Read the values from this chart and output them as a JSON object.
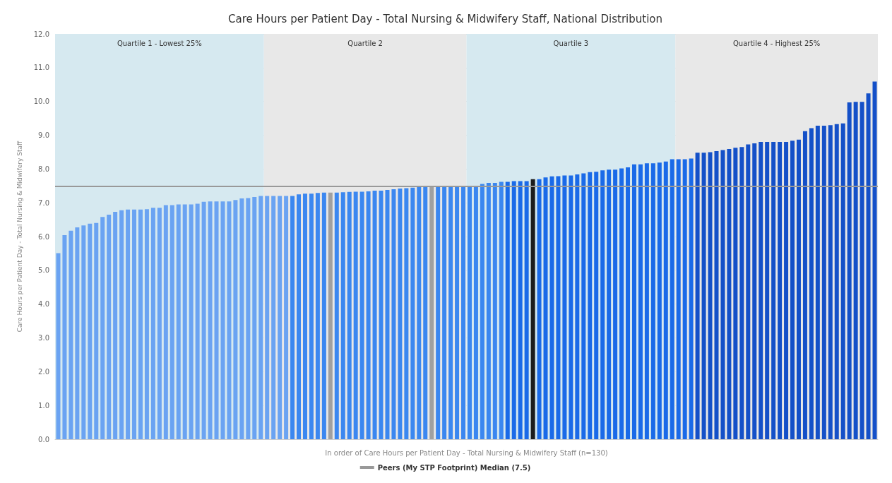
{
  "chart_data": {
    "type": "bar",
    "title": "Care Hours per Patient Day - Total Nursing & Midwifery Staff, National Distribution",
    "xlabel": "In order of Care Hours per Patient Day - Total Nursing & Midwifery Staff (n=130)",
    "ylabel": "Care Hours per Patient Day - Total Nursing & Midwifery Staff",
    "categories": [
      null,
      null,
      null,
      null,
      null,
      null,
      null,
      null,
      null,
      null,
      null,
      null,
      null,
      null,
      null,
      null,
      null,
      null,
      null,
      null,
      null,
      null,
      null,
      null,
      null,
      null,
      null,
      null,
      null,
      null,
      null,
      null,
      null,
      null,
      null,
      null,
      null,
      null,
      null,
      null,
      null,
      null,
      null,
      null,
      null,
      null,
      null,
      null,
      null,
      null,
      null,
      null,
      null,
      null,
      null,
      null,
      null,
      null,
      null,
      null,
      null,
      null,
      null,
      null,
      null,
      null,
      null,
      null,
      null,
      null,
      null,
      null,
      null,
      null,
      null,
      null,
      null,
      null,
      null,
      null,
      null,
      null,
      null,
      null,
      null,
      null,
      null,
      null,
      null,
      null,
      null,
      null,
      null,
      null,
      null,
      null,
      null,
      null,
      null,
      null,
      null,
      null,
      null,
      null,
      null,
      null,
      null,
      null,
      null,
      null,
      null,
      null,
      null,
      null,
      null,
      null,
      null,
      null,
      null,
      null,
      null,
      null,
      null,
      null,
      null,
      null,
      null,
      null,
      null,
      null
    ],
    "values": [
      5.51,
      6.04,
      6.17,
      6.27,
      6.33,
      6.38,
      6.4,
      6.58,
      6.65,
      6.73,
      6.78,
      6.8,
      6.8,
      6.8,
      6.81,
      6.85,
      6.85,
      6.93,
      6.93,
      6.95,
      6.95,
      6.95,
      6.97,
      7.03,
      7.04,
      7.04,
      7.04,
      7.04,
      7.08,
      7.13,
      7.14,
      7.17,
      7.2,
      7.2,
      7.2,
      7.2,
      7.2,
      7.2,
      7.25,
      7.27,
      7.27,
      7.29,
      7.3,
      7.3,
      7.3,
      7.31,
      7.32,
      7.33,
      7.33,
      7.34,
      7.36,
      7.36,
      7.38,
      7.4,
      7.42,
      7.43,
      7.45,
      7.47,
      7.48,
      7.49,
      7.49,
      7.49,
      7.49,
      7.5,
      7.5,
      7.5,
      7.5,
      7.56,
      7.59,
      7.59,
      7.62,
      7.62,
      7.64,
      7.64,
      7.64,
      7.7,
      7.7,
      7.75,
      7.78,
      7.79,
      7.81,
      7.81,
      7.84,
      7.87,
      7.91,
      7.92,
      7.96,
      7.98,
      7.98,
      8.02,
      8.05,
      8.14,
      8.14,
      8.17,
      8.17,
      8.19,
      8.22,
      8.29,
      8.29,
      8.29,
      8.31,
      8.48,
      8.48,
      8.5,
      8.53,
      8.56,
      8.59,
      8.63,
      8.65,
      8.73,
      8.76,
      8.8,
      8.8,
      8.8,
      8.8,
      8.8,
      8.84,
      8.87,
      9.12,
      9.21,
      9.28,
      9.28,
      9.3,
      9.33,
      9.35,
      9.97,
      9.99,
      9.99,
      10.24,
      10.59
    ],
    "colors": [
      "#6aa3f2",
      "#6aa3f2",
      "#6aa3f2",
      "#6aa3f2",
      "#6aa3f2",
      "#6aa3f2",
      "#6aa3f2",
      "#6aa3f2",
      "#6aa3f2",
      "#6aa3f2",
      "#6aa3f2",
      "#6aa3f2",
      "#6aa3f2",
      "#6aa3f2",
      "#6aa3f2",
      "#6aa3f2",
      "#6aa3f2",
      "#6aa3f2",
      "#6aa3f2",
      "#6aa3f2",
      "#6aa3f2",
      "#6aa3f2",
      "#6aa3f2",
      "#6aa3f2",
      "#6aa3f2",
      "#6aa3f2",
      "#6aa3f2",
      "#6aa3f2",
      "#6aa3f2",
      "#6aa3f2",
      "#6aa3f2",
      "#6aa3f2",
      "#6aa3f2",
      "#6aa3f2",
      "#6aa3f2",
      "#6aa3f2",
      "#6aa3f2",
      "#3b87f0",
      "#3b87f0",
      "#3b87f0",
      "#3b87f0",
      "#3b87f0",
      "#3b87f0",
      "#a0a0a0",
      "#3b87f0",
      "#3b87f0",
      "#3b87f0",
      "#3b87f0",
      "#3b87f0",
      "#3b87f0",
      "#3b87f0",
      "#3b87f0",
      "#3b87f0",
      "#3b87f0",
      "#3b87f0",
      "#3b87f0",
      "#3b87f0",
      "#3b87f0",
      "#3b87f0",
      "#a0a0a0",
      "#3b87f0",
      "#3b87f0",
      "#3b87f0",
      "#3b87f0",
      "#3b87f0",
      "#3b87f0",
      "#3b87f0",
      "#3b87f0",
      "#3b87f0",
      "#3b87f0",
      "#3b87f0",
      "#1a6ae8",
      "#1a6ae8",
      "#1a6ae8",
      "#1a6ae8",
      "#1c1c1c",
      "#1a6ae8",
      "#1a6ae8",
      "#1a6ae8",
      "#1a6ae8",
      "#1a6ae8",
      "#1a6ae8",
      "#1a6ae8",
      "#1a6ae8",
      "#1a6ae8",
      "#1a6ae8",
      "#1a6ae8",
      "#1a6ae8",
      "#1a6ae8",
      "#1a6ae8",
      "#1a6ae8",
      "#1a6ae8",
      "#1a6ae8",
      "#1a6ae8",
      "#1a6ae8",
      "#1a6ae8",
      "#1a6ae8",
      "#1a6ae8",
      "#1a6ae8",
      "#1a6ae8",
      "#1a6ae8",
      "#1450c8",
      "#1450c8",
      "#1450c8",
      "#1450c8",
      "#1450c8",
      "#1450c8",
      "#1450c8",
      "#1450c8",
      "#1450c8",
      "#1450c8",
      "#1450c8",
      "#1450c8",
      "#1450c8",
      "#1450c8",
      "#1450c8",
      "#1450c8",
      "#1450c8",
      "#1450c8",
      "#1450c8",
      "#1450c8",
      "#1450c8",
      "#1450c8",
      "#1450c8",
      "#1450c8",
      "#1450c8",
      "#1450c8",
      "#1450c8",
      "#1450c8",
      "#1450c8"
    ],
    "ylim": [
      0,
      12
    ],
    "yticks": [
      {
        "value": 0,
        "label": "0.0"
      },
      {
        "value": 1,
        "label": "1.0"
      },
      {
        "value": 2,
        "label": "2.0"
      },
      {
        "value": 3,
        "label": "3.0"
      },
      {
        "value": 4,
        "label": "4.0"
      },
      {
        "value": 5,
        "label": "5.0"
      },
      {
        "value": 6,
        "label": "6.0"
      },
      {
        "value": 7,
        "label": "7.0"
      },
      {
        "value": 8,
        "label": "8.0"
      },
      {
        "value": 9,
        "label": "9.0"
      },
      {
        "value": 10,
        "label": "10.0"
      },
      {
        "value": 11,
        "label": "11.0"
      },
      {
        "value": 12,
        "label": "12.0"
      }
    ],
    "tick_labels": "y",
    "grid": "y",
    "legend": "bottom",
    "annotations": [
      "Quartile 1 - Lowest 25%",
      "Quartile 2",
      "Quartile 3",
      "Quartile 4 - Highest 25%"
    ],
    "ref_lines": [
      {
        "axis": "y",
        "value": 7.5,
        "label": "Peers (My STP Footprint) Median (7.5)",
        "color": "#999999"
      }
    ]
  }
}
